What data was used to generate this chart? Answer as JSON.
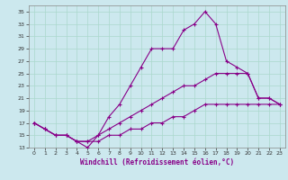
{
  "xlabel": "Windchill (Refroidissement éolien,°C)",
  "xlim": [
    -0.5,
    23.5
  ],
  "ylim": [
    13,
    36
  ],
  "yticks": [
    13,
    15,
    17,
    19,
    21,
    23,
    25,
    27,
    29,
    31,
    33,
    35
  ],
  "xticks": [
    0,
    1,
    2,
    3,
    4,
    5,
    6,
    7,
    8,
    9,
    10,
    11,
    12,
    13,
    14,
    15,
    16,
    17,
    18,
    19,
    20,
    21,
    22,
    23
  ],
  "bg_color": "#cce8ee",
  "line_color": "#880088",
  "grid_color": "#aad8cc",
  "line1": [
    17,
    16,
    15,
    15,
    14,
    13,
    15,
    18,
    20,
    23,
    26,
    29,
    29,
    29,
    32,
    33,
    35,
    33,
    27,
    26,
    25,
    21,
    21,
    20
  ],
  "line2": [
    17,
    16,
    15,
    15,
    14,
    14,
    15,
    16,
    17,
    18,
    19,
    20,
    21,
    22,
    23,
    23,
    24,
    25,
    25,
    25,
    25,
    21,
    21,
    20
  ],
  "line3": [
    17,
    16,
    15,
    15,
    14,
    14,
    14,
    15,
    15,
    16,
    16,
    17,
    17,
    18,
    18,
    19,
    20,
    20,
    20,
    20,
    20,
    20,
    20,
    20
  ]
}
